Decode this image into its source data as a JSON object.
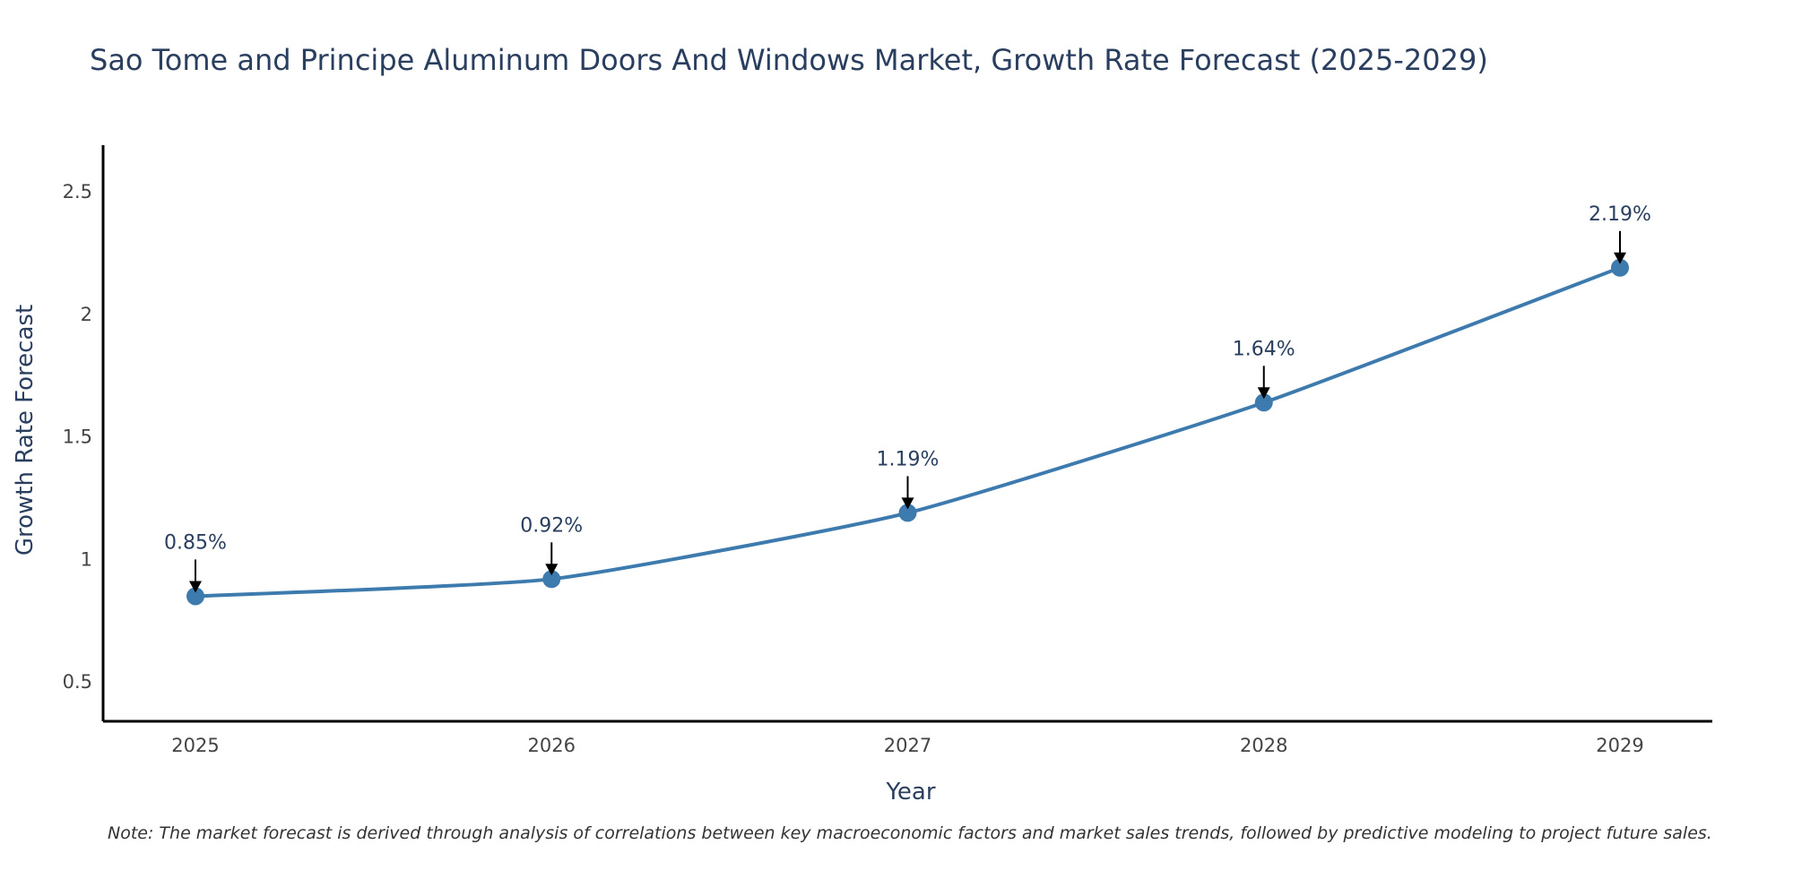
{
  "chart_data": {
    "type": "line",
    "title": "Sao Tome and Principe Aluminum Doors And Windows Market, Growth Rate Forecast (2025-2029)",
    "xlabel": "Year",
    "ylabel": "Growth Rate Forecast",
    "categories": [
      "2025",
      "2026",
      "2027",
      "2028",
      "2029"
    ],
    "series": [
      {
        "name": "Growth Rate Forecast",
        "values": [
          0.85,
          0.92,
          1.19,
          1.64,
          2.19
        ],
        "labels": [
          "0.85%",
          "0.92%",
          "1.19%",
          "1.64%",
          "2.19%"
        ]
      }
    ],
    "ylim": [
      0.34,
      2.69
    ],
    "yticks": [
      0.5,
      1,
      1.5,
      2,
      2.5
    ],
    "ytick_labels": [
      "0.5",
      "1",
      "1.5",
      "2",
      "2.5"
    ],
    "grid": false,
    "line_color": "#3d7aad",
    "axis_color": "#000000",
    "annotation_arrow_color": "#000000",
    "note": "Note: The market forecast is derived through analysis of correlations between key macroeconomic factors and market sales trends, followed by predictive modeling to project future sales."
  }
}
